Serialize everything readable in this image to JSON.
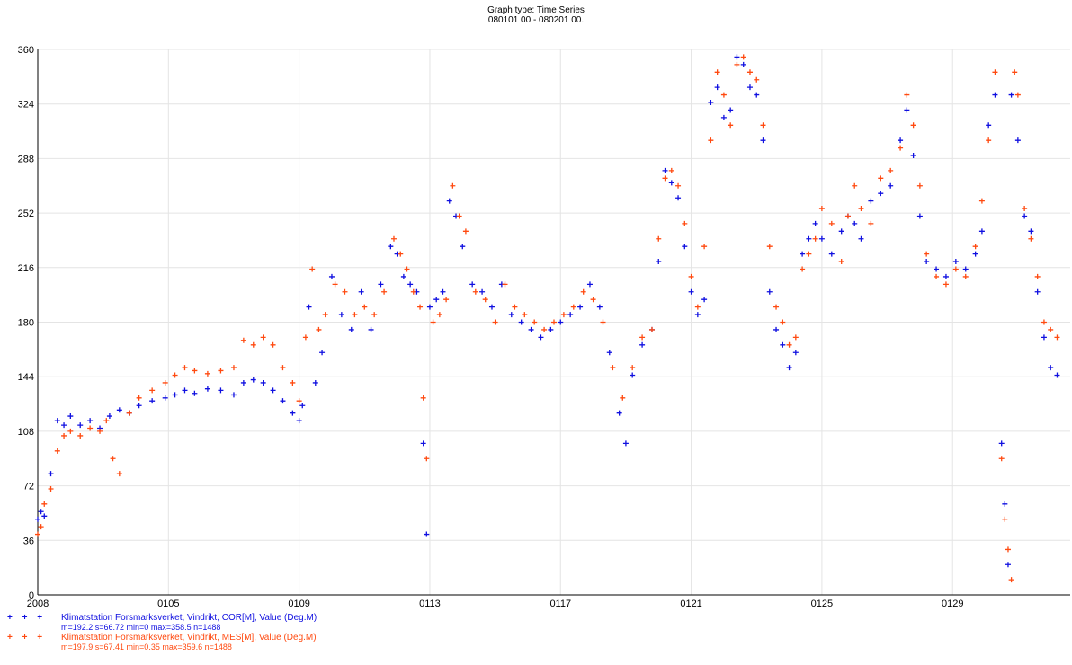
{
  "title": "Graph type: Time Series",
  "subtitle": "080101 00 - 080201 00.",
  "legend": [
    {
      "marker": "+ + +",
      "label": "Klimatstation Forsmarksverket, Vindrikt, COR[M], Value (Deg.M)",
      "stats": "m=192.2 s=66.72 min=0 max=358.5 n=1488",
      "color": "#1010e0"
    },
    {
      "marker": "+ + +",
      "label": "Klimatstation Forsmarksverket, Vindrikt, MES[M], Value (Deg.M)",
      "stats": "m=197.9 s=67.41 min=0.35 max=359.6 n=1488",
      "color": "#ff4a10"
    }
  ],
  "chart_data": {
    "type": "scatter",
    "title": "Graph type: Time Series",
    "subtitle": "080101 00 - 080201 00.",
    "xlim": [
      0,
      31.6
    ],
    "ylim": [
      0,
      360
    ],
    "grid": true,
    "legend_position": "bottom-left",
    "y_ticks": [
      0,
      36,
      72,
      108,
      144,
      180,
      216,
      252,
      288,
      324,
      360
    ],
    "x_ticks": [
      {
        "pos": 0,
        "label": "2008"
      },
      {
        "pos": 4,
        "label": "0105"
      },
      {
        "pos": 8,
        "label": "0109"
      },
      {
        "pos": 12,
        "label": "0113"
      },
      {
        "pos": 16,
        "label": "0117"
      },
      {
        "pos": 20,
        "label": "0121"
      },
      {
        "pos": 24,
        "label": "0125"
      },
      {
        "pos": 28,
        "label": "0129"
      }
    ],
    "series": [
      {
        "name": "Klimatstation Forsmarksverket, Vindrikt, COR[M], Value (Deg.M)",
        "color": "#1010e0",
        "points": [
          [
            0.0,
            50
          ],
          [
            0.1,
            55
          ],
          [
            0.2,
            52
          ],
          [
            0.4,
            80
          ],
          [
            0.6,
            115
          ],
          [
            0.8,
            112
          ],
          [
            1.0,
            118
          ],
          [
            1.3,
            112
          ],
          [
            1.6,
            115
          ],
          [
            1.9,
            110
          ],
          [
            2.2,
            118
          ],
          [
            2.5,
            122
          ],
          [
            2.8,
            120
          ],
          [
            3.1,
            125
          ],
          [
            3.5,
            128
          ],
          [
            3.9,
            130
          ],
          [
            4.2,
            132
          ],
          [
            4.5,
            135
          ],
          [
            4.8,
            133
          ],
          [
            5.2,
            136
          ],
          [
            5.6,
            135
          ],
          [
            6.0,
            132
          ],
          [
            6.3,
            140
          ],
          [
            6.6,
            142
          ],
          [
            6.9,
            140
          ],
          [
            7.2,
            135
          ],
          [
            7.5,
            128
          ],
          [
            7.8,
            120
          ],
          [
            8.0,
            115
          ],
          [
            8.1,
            125
          ],
          [
            8.3,
            190
          ],
          [
            8.5,
            140
          ],
          [
            8.7,
            160
          ],
          [
            9.0,
            210
          ],
          [
            9.3,
            185
          ],
          [
            9.6,
            175
          ],
          [
            9.9,
            200
          ],
          [
            10.2,
            175
          ],
          [
            10.5,
            205
          ],
          [
            10.8,
            230
          ],
          [
            11.0,
            225
          ],
          [
            11.2,
            210
          ],
          [
            11.4,
            205
          ],
          [
            11.6,
            200
          ],
          [
            11.8,
            100
          ],
          [
            11.9,
            40
          ],
          [
            12.0,
            190
          ],
          [
            12.2,
            195
          ],
          [
            12.4,
            200
          ],
          [
            12.6,
            260
          ],
          [
            12.8,
            250
          ],
          [
            13.0,
            230
          ],
          [
            13.3,
            205
          ],
          [
            13.6,
            200
          ],
          [
            13.9,
            190
          ],
          [
            14.2,
            205
          ],
          [
            14.5,
            185
          ],
          [
            14.8,
            180
          ],
          [
            15.1,
            175
          ],
          [
            15.4,
            170
          ],
          [
            15.7,
            175
          ],
          [
            16.0,
            180
          ],
          [
            16.3,
            185
          ],
          [
            16.6,
            190
          ],
          [
            16.9,
            205
          ],
          [
            17.2,
            190
          ],
          [
            17.5,
            160
          ],
          [
            17.8,
            120
          ],
          [
            18.0,
            100
          ],
          [
            18.2,
            145
          ],
          [
            18.5,
            165
          ],
          [
            18.8,
            175
          ],
          [
            19.0,
            220
          ],
          [
            19.2,
            280
          ],
          [
            19.4,
            272
          ],
          [
            19.6,
            262
          ],
          [
            19.8,
            230
          ],
          [
            20.0,
            200
          ],
          [
            20.2,
            185
          ],
          [
            20.4,
            195
          ],
          [
            20.6,
            325
          ],
          [
            20.8,
            335
          ],
          [
            21.0,
            315
          ],
          [
            21.2,
            320
          ],
          [
            21.4,
            355
          ],
          [
            21.6,
            350
          ],
          [
            21.8,
            335
          ],
          [
            22.0,
            330
          ],
          [
            22.2,
            300
          ],
          [
            22.4,
            200
          ],
          [
            22.6,
            175
          ],
          [
            22.8,
            165
          ],
          [
            23.0,
            150
          ],
          [
            23.2,
            160
          ],
          [
            23.4,
            225
          ],
          [
            23.6,
            235
          ],
          [
            23.8,
            245
          ],
          [
            24.0,
            235
          ],
          [
            24.3,
            225
          ],
          [
            24.6,
            240
          ],
          [
            24.8,
            250
          ],
          [
            25.0,
            245
          ],
          [
            25.2,
            235
          ],
          [
            25.5,
            260
          ],
          [
            25.8,
            265
          ],
          [
            26.1,
            270
          ],
          [
            26.4,
            300
          ],
          [
            26.6,
            320
          ],
          [
            26.8,
            290
          ],
          [
            27.0,
            250
          ],
          [
            27.2,
            220
          ],
          [
            27.5,
            215
          ],
          [
            27.8,
            210
          ],
          [
            28.1,
            220
          ],
          [
            28.4,
            215
          ],
          [
            28.7,
            225
          ],
          [
            28.9,
            240
          ],
          [
            29.1,
            310
          ],
          [
            29.3,
            330
          ],
          [
            29.5,
            100
          ],
          [
            29.6,
            60
          ],
          [
            29.7,
            20
          ],
          [
            29.8,
            330
          ],
          [
            30.0,
            300
          ],
          [
            30.2,
            250
          ],
          [
            30.4,
            240
          ],
          [
            30.6,
            200
          ],
          [
            30.8,
            170
          ],
          [
            31.0,
            150
          ],
          [
            31.2,
            145
          ]
        ]
      },
      {
        "name": "Klimatstation Forsmarksverket, Vindrikt, MES[M], Value (Deg.M)",
        "color": "#ff4a10",
        "points": [
          [
            0.0,
            40
          ],
          [
            0.1,
            45
          ],
          [
            0.2,
            60
          ],
          [
            0.4,
            70
          ],
          [
            0.6,
            95
          ],
          [
            0.8,
            105
          ],
          [
            1.0,
            108
          ],
          [
            1.3,
            105
          ],
          [
            1.6,
            110
          ],
          [
            1.9,
            108
          ],
          [
            2.1,
            115
          ],
          [
            2.3,
            90
          ],
          [
            2.5,
            80
          ],
          [
            2.8,
            120
          ],
          [
            3.1,
            130
          ],
          [
            3.5,
            135
          ],
          [
            3.9,
            140
          ],
          [
            4.2,
            145
          ],
          [
            4.5,
            150
          ],
          [
            4.8,
            148
          ],
          [
            5.2,
            146
          ],
          [
            5.6,
            148
          ],
          [
            6.0,
            150
          ],
          [
            6.3,
            168
          ],
          [
            6.6,
            165
          ],
          [
            6.9,
            170
          ],
          [
            7.2,
            165
          ],
          [
            7.5,
            150
          ],
          [
            7.8,
            140
          ],
          [
            8.0,
            128
          ],
          [
            8.2,
            170
          ],
          [
            8.4,
            215
          ],
          [
            8.6,
            175
          ],
          [
            8.8,
            185
          ],
          [
            9.1,
            205
          ],
          [
            9.4,
            200
          ],
          [
            9.7,
            185
          ],
          [
            10.0,
            190
          ],
          [
            10.3,
            185
          ],
          [
            10.6,
            200
          ],
          [
            10.9,
            235
          ],
          [
            11.1,
            225
          ],
          [
            11.3,
            215
          ],
          [
            11.5,
            200
          ],
          [
            11.7,
            190
          ],
          [
            11.8,
            130
          ],
          [
            11.9,
            90
          ],
          [
            12.1,
            180
          ],
          [
            12.3,
            185
          ],
          [
            12.5,
            195
          ],
          [
            12.7,
            270
          ],
          [
            12.9,
            250
          ],
          [
            13.1,
            240
          ],
          [
            13.4,
            200
          ],
          [
            13.7,
            195
          ],
          [
            14.0,
            180
          ],
          [
            14.3,
            205
          ],
          [
            14.6,
            190
          ],
          [
            14.9,
            185
          ],
          [
            15.2,
            180
          ],
          [
            15.5,
            175
          ],
          [
            15.8,
            180
          ],
          [
            16.1,
            185
          ],
          [
            16.4,
            190
          ],
          [
            16.7,
            200
          ],
          [
            17.0,
            195
          ],
          [
            17.3,
            180
          ],
          [
            17.6,
            150
          ],
          [
            17.9,
            130
          ],
          [
            18.2,
            150
          ],
          [
            18.5,
            170
          ],
          [
            18.8,
            175
          ],
          [
            19.0,
            235
          ],
          [
            19.2,
            275
          ],
          [
            19.4,
            280
          ],
          [
            19.6,
            270
          ],
          [
            19.8,
            245
          ],
          [
            20.0,
            210
          ],
          [
            20.2,
            190
          ],
          [
            20.4,
            230
          ],
          [
            20.6,
            300
          ],
          [
            20.8,
            345
          ],
          [
            21.0,
            330
          ],
          [
            21.2,
            310
          ],
          [
            21.4,
            350
          ],
          [
            21.6,
            355
          ],
          [
            21.8,
            345
          ],
          [
            22.0,
            340
          ],
          [
            22.2,
            310
          ],
          [
            22.4,
            230
          ],
          [
            22.6,
            190
          ],
          [
            22.8,
            180
          ],
          [
            23.0,
            165
          ],
          [
            23.2,
            170
          ],
          [
            23.4,
            215
          ],
          [
            23.6,
            225
          ],
          [
            23.8,
            235
          ],
          [
            24.0,
            255
          ],
          [
            24.3,
            245
          ],
          [
            24.6,
            220
          ],
          [
            24.8,
            250
          ],
          [
            25.0,
            270
          ],
          [
            25.2,
            255
          ],
          [
            25.5,
            245
          ],
          [
            25.8,
            275
          ],
          [
            26.1,
            280
          ],
          [
            26.4,
            295
          ],
          [
            26.6,
            330
          ],
          [
            26.8,
            310
          ],
          [
            27.0,
            270
          ],
          [
            27.2,
            225
          ],
          [
            27.5,
            210
          ],
          [
            27.8,
            205
          ],
          [
            28.1,
            215
          ],
          [
            28.4,
            210
          ],
          [
            28.7,
            230
          ],
          [
            28.9,
            260
          ],
          [
            29.1,
            300
          ],
          [
            29.3,
            345
          ],
          [
            29.5,
            90
          ],
          [
            29.6,
            50
          ],
          [
            29.7,
            30
          ],
          [
            29.8,
            10
          ],
          [
            29.9,
            345
          ],
          [
            30.0,
            330
          ],
          [
            30.2,
            255
          ],
          [
            30.4,
            235
          ],
          [
            30.6,
            210
          ],
          [
            30.8,
            180
          ],
          [
            31.0,
            175
          ],
          [
            31.2,
            170
          ]
        ]
      }
    ]
  }
}
